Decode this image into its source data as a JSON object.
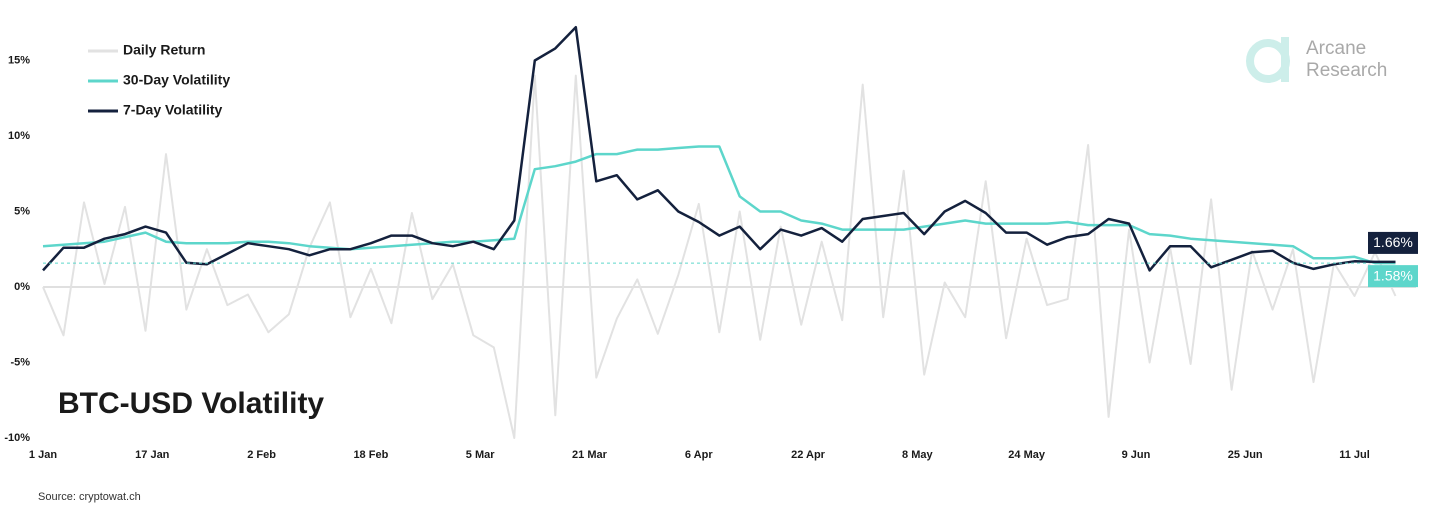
{
  "chart_data": {
    "type": "line",
    "title": "BTC-USD Volatility",
    "source": "Source: cryptowat.ch",
    "brand": [
      "Arcane",
      "Research"
    ],
    "legend": "upper left",
    "zero_line": true,
    "x": [
      0,
      3,
      6,
      9,
      12,
      15,
      18,
      21,
      24,
      27,
      30,
      33,
      36,
      39,
      42,
      45,
      48,
      51,
      54,
      57,
      60,
      63,
      66,
      69,
      72,
      75,
      78,
      81,
      84,
      87,
      90,
      93,
      96,
      99,
      102,
      105,
      108,
      111,
      114,
      117,
      120,
      123,
      126,
      129,
      132,
      135,
      138,
      141,
      144,
      147,
      150,
      153,
      156,
      159,
      162,
      165,
      168,
      171,
      174,
      177,
      180,
      183,
      186,
      189,
      192,
      195,
      198
    ],
    "xlim": [
      0,
      201
    ],
    "xticks": [
      {
        "value": 0,
        "label": "1 Jan"
      },
      {
        "value": 16,
        "label": "17 Jan"
      },
      {
        "value": 32,
        "label": "2 Feb"
      },
      {
        "value": 48,
        "label": "18 Feb"
      },
      {
        "value": 64,
        "label": "5 Mar"
      },
      {
        "value": 80,
        "label": "21 Mar"
      },
      {
        "value": 96,
        "label": "6 Apr"
      },
      {
        "value": 112,
        "label": "22 Apr"
      },
      {
        "value": 128,
        "label": "8 May"
      },
      {
        "value": 144,
        "label": "24 May"
      },
      {
        "value": 160,
        "label": "9 Jun"
      },
      {
        "value": 176,
        "label": "25 Jun"
      },
      {
        "value": 192,
        "label": "11 Jul"
      }
    ],
    "ylim": [
      -10,
      17.5
    ],
    "yticks": [
      {
        "value": -10,
        "label": "-10%"
      },
      {
        "value": -5,
        "label": "-5%"
      },
      {
        "value": 0,
        "label": "0%"
      },
      {
        "value": 5,
        "label": "5%"
      },
      {
        "value": 10,
        "label": "10%"
      },
      {
        "value": 15,
        "label": "15%"
      }
    ],
    "series": [
      {
        "name": "Daily Return",
        "color": "#e2e2e2",
        "width": 2,
        "values": [
          0,
          -3.2,
          5.6,
          0.2,
          5.3,
          -2.9,
          8.8,
          -1.5,
          2.5,
          -1.2,
          -0.5,
          -3.0,
          -1.8,
          2.6,
          5.6,
          -2.0,
          1.2,
          -2.4,
          4.9,
          -0.8,
          1.5,
          -3.2,
          -4.0,
          -10,
          14.0,
          -8.5,
          14.0,
          -6.0,
          -2.1,
          0.5,
          -3.1,
          0.8,
          5.5,
          -3.0,
          5.0,
          -3.5,
          4.0,
          -2.5,
          3.0,
          -2.2,
          13.4,
          -2.0,
          7.7,
          -5.8,
          0.3,
          -2.0,
          7.0,
          -3.4,
          3.2,
          -1.2,
          -0.8,
          9.4,
          -8.6,
          3.8,
          -5.0,
          2.6,
          -5.1,
          5.8,
          -6.8,
          2.4,
          -1.5,
          2.5,
          -6.3,
          1.6,
          -0.6,
          2.3,
          -0.6
        ]
      },
      {
        "name": "30-Day Volatility",
        "color": "#5dd6cb",
        "width": 2.5,
        "values": [
          2.7,
          2.8,
          2.9,
          3.0,
          3.3,
          3.6,
          3.0,
          2.9,
          2.9,
          2.9,
          3.0,
          3.0,
          2.9,
          2.7,
          2.6,
          2.5,
          2.6,
          2.7,
          2.8,
          2.9,
          3.0,
          3.0,
          3.1,
          3.2,
          7.8,
          8.0,
          8.3,
          8.8,
          8.8,
          9.1,
          9.1,
          9.2,
          9.3,
          9.3,
          6.0,
          5.0,
          5.0,
          4.4,
          4.2,
          3.8,
          3.8,
          3.8,
          3.8,
          4.0,
          4.2,
          4.4,
          4.2,
          4.2,
          4.2,
          4.2,
          4.3,
          4.1,
          4.1,
          4.1,
          3.5,
          3.4,
          3.2,
          3.1,
          3.0,
          2.9,
          2.8,
          2.7,
          1.9,
          1.9,
          2.0,
          1.58,
          1.58
        ],
        "end_label": {
          "value": 1.58,
          "label": "1.58%"
        }
      },
      {
        "name": "7-Day Volatility",
        "color": "#14213d",
        "width": 2.5,
        "values": [
          1.1,
          2.6,
          2.6,
          3.2,
          3.5,
          4.0,
          3.6,
          1.6,
          1.5,
          2.2,
          2.9,
          2.7,
          2.5,
          2.1,
          2.5,
          2.5,
          2.9,
          3.4,
          3.4,
          2.9,
          2.7,
          3.0,
          2.5,
          4.4,
          15.0,
          15.8,
          17.2,
          7.0,
          7.4,
          5.8,
          6.4,
          5.0,
          4.3,
          3.4,
          4.0,
          2.5,
          3.8,
          3.4,
          3.9,
          3.0,
          4.5,
          4.7,
          4.9,
          3.5,
          5.0,
          5.7,
          4.9,
          3.6,
          3.6,
          2.8,
          3.3,
          3.5,
          4.5,
          4.2,
          1.1,
          2.7,
          2.7,
          1.3,
          1.8,
          2.3,
          2.4,
          1.6,
          1.2,
          1.5,
          1.7,
          1.66,
          1.66
        ],
        "end_label": {
          "value": 1.66,
          "label": "1.66%"
        }
      }
    ]
  }
}
